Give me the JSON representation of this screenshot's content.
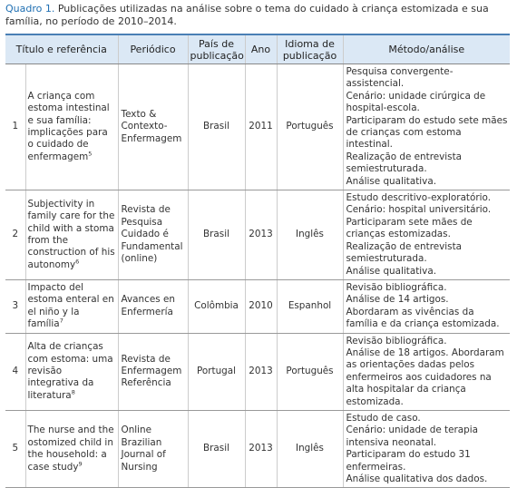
{
  "caption": {
    "label": "Quadro 1.",
    "text": "Publicações utilizadas na análise sobre o tema do cuidado à criança estomizada e sua família, no período de 2010–2014."
  },
  "table": {
    "headers": [
      "Título e referência",
      "Periódico",
      "País de publicação",
      "Ano",
      "Idioma de publicação",
      "Método/análise"
    ],
    "rows": [
      {
        "number": "1",
        "title": "A criança com estoma intestinal e sua família: implicações para o cuidado de enfermagem",
        "ref": "5",
        "journal": "Texto & Contexto-Enfermagem",
        "country": "Brasil",
        "year": "2011",
        "language": "Português",
        "method": [
          "Pesquisa convergente-assistencial.",
          "Cenário: unidade cirúrgica de hospital-escola.",
          "Participaram do estudo sete mães de crianças com estoma intestinal.",
          "Realização de entrevista semiestruturada.",
          "Análise qualitativa."
        ]
      },
      {
        "number": "2",
        "title": "Subjectivity in family care for the child with a stoma from the construction of his autonomy",
        "ref": "6",
        "journal": "Revista de Pesquisa Cuidado é Fundamental (online)",
        "country": "Brasil",
        "year": "2013",
        "language": "Inglês",
        "method": [
          "Estudo descritivo-exploratório.",
          "Cenário: hospital universitário.",
          "Participaram sete mães de crianças estomizadas.",
          "Realização de entrevista semiestruturada.",
          "Análise qualitativa."
        ]
      },
      {
        "number": "3",
        "title": "Impacto del estoma enteral en el niño y la família",
        "ref": "7",
        "journal": "Avances en Enfermería",
        "country": "Colômbia",
        "year": "2010",
        "language": "Espanhol",
        "method": [
          "Revisão bibliográfica.",
          "Análise de 14 artigos.",
          "Abordaram as vivências da família e da criança estomizada."
        ]
      },
      {
        "number": "4",
        "title": "Alta de crianças com estoma: uma revisão integrativa da literatura",
        "ref": "8",
        "journal": "Revista de Enfermagem Referência",
        "country": "Portugal",
        "year": "2013",
        "language": "Português",
        "method": [
          "Revisão bibliográfica.",
          "Análise de 18 artigos. Abordaram as orientações dadas pelos enfermeiros aos cuidadores na alta hospitalar da criança estomizada."
        ]
      },
      {
        "number": "5",
        "title": "The nurse and the ostomized child in the household: a case study",
        "ref": "9",
        "journal": "Online Brazilian Journal of Nursing",
        "country": "Brasil",
        "year": "2013",
        "language": "Inglês",
        "method": [
          "Estudo de caso.",
          "Cenário: unidade de terapia intensiva neonatal.",
          "Participaram do estudo 31 enfermeiras.",
          "Análise qualitativa dos dados."
        ]
      }
    ]
  }
}
